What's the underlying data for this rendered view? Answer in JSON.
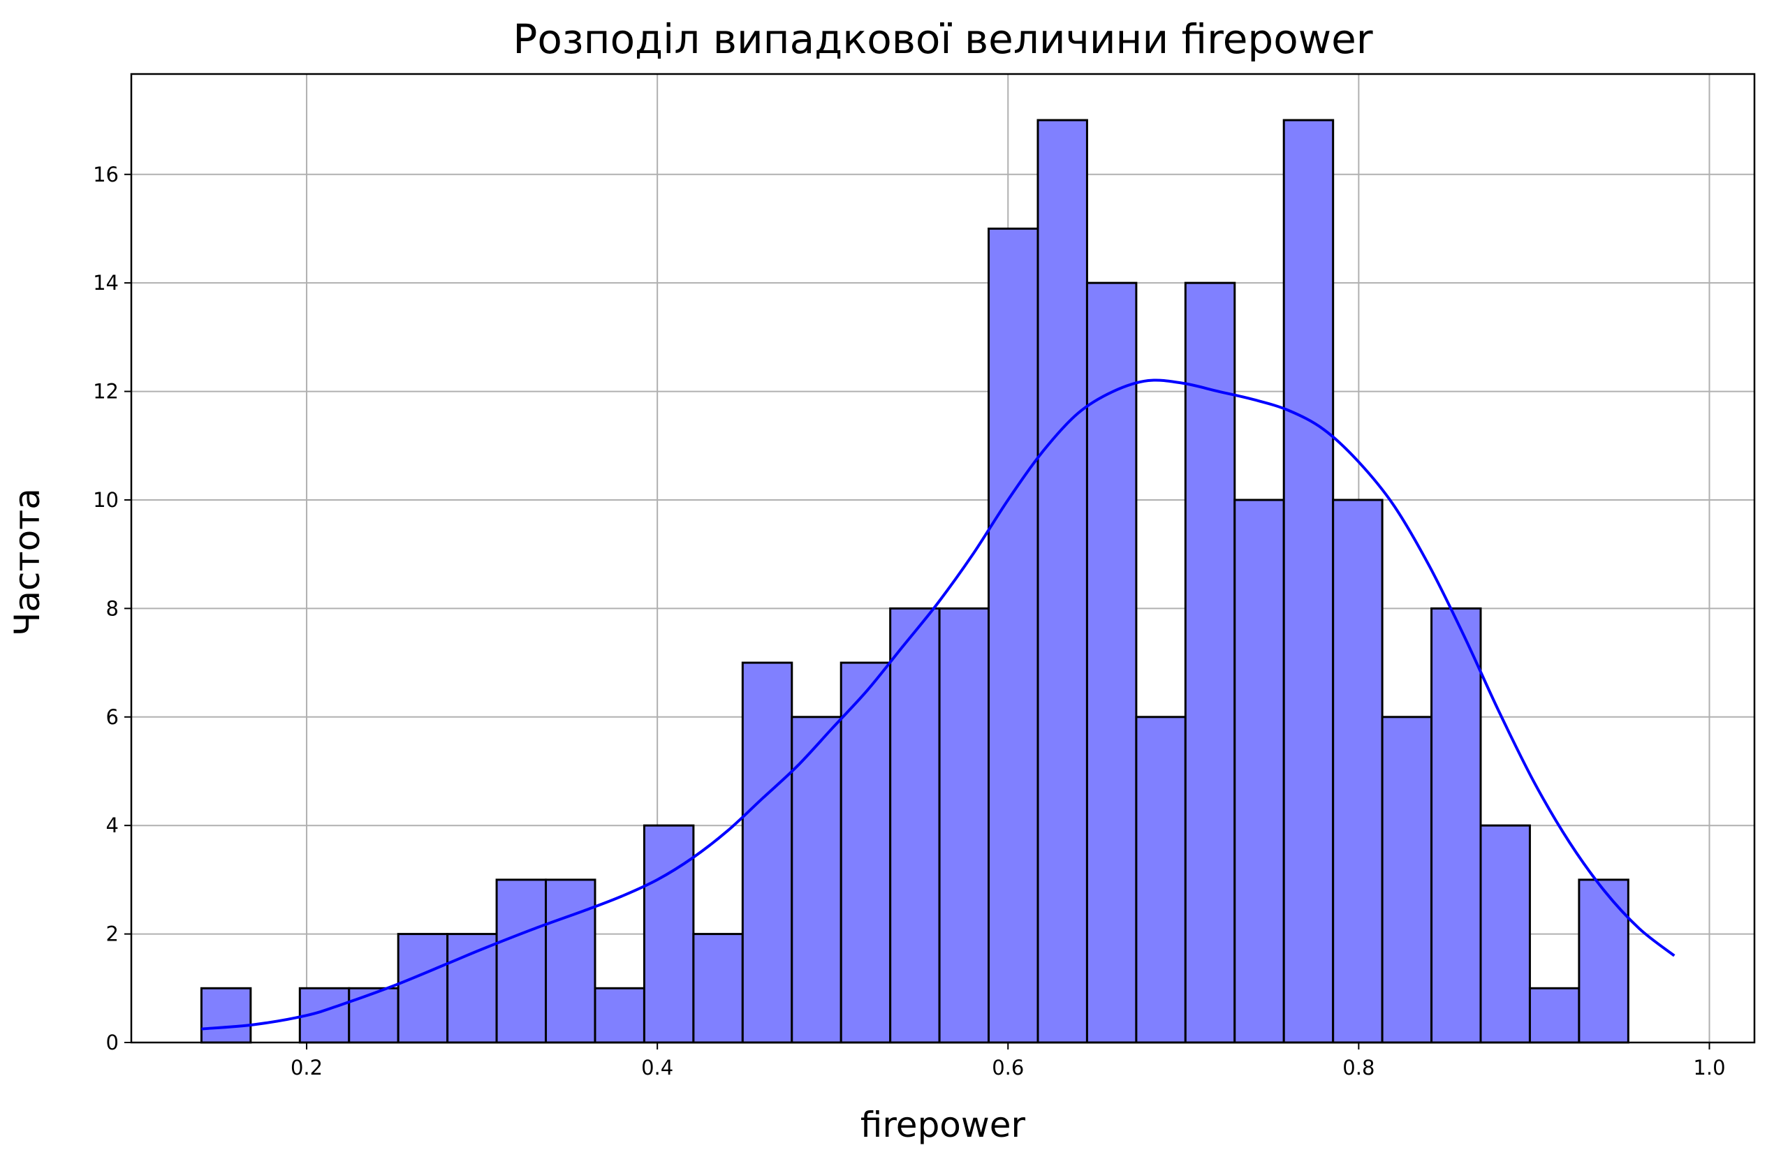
{
  "chart_data": {
    "type": "bar",
    "title": "Розподіл випадкової величини firepower",
    "xlabel": "firepower",
    "ylabel": "Частота",
    "xlim": [
      0.1,
      1.0257
    ],
    "ylim": [
      0,
      17.85
    ],
    "grid": true,
    "x_ticks": [
      0.2,
      0.4,
      0.6,
      0.8,
      1.0
    ],
    "x_tick_labels": [
      "0.2",
      "0.4",
      "0.6",
      "0.8",
      "1.0"
    ],
    "y_ticks": [
      0,
      2,
      4,
      6,
      8,
      10,
      12,
      14,
      16
    ],
    "y_tick_labels": [
      "0",
      "2",
      "4",
      "6",
      "8",
      "10",
      "12",
      "14",
      "16"
    ],
    "bins": {
      "start": 0.14,
      "width": 0.02806,
      "counts": [
        1,
        0,
        1,
        1,
        2,
        2,
        3,
        3,
        1,
        4,
        2,
        7,
        6,
        7,
        8,
        8,
        15,
        17,
        14,
        6,
        14,
        10,
        17,
        10,
        6,
        8,
        4,
        1,
        3
      ]
    },
    "kde": {
      "x": [
        0.14,
        0.17,
        0.2,
        0.22,
        0.25,
        0.28,
        0.3,
        0.33,
        0.36,
        0.38,
        0.4,
        0.42,
        0.44,
        0.46,
        0.48,
        0.5,
        0.52,
        0.54,
        0.56,
        0.58,
        0.6,
        0.62,
        0.64,
        0.66,
        0.68,
        0.7,
        0.72,
        0.74,
        0.76,
        0.78,
        0.8,
        0.82,
        0.84,
        0.86,
        0.88,
        0.9,
        0.92,
        0.94,
        0.96,
        0.98
      ],
      "y": [
        0.25,
        0.33,
        0.5,
        0.7,
        1.05,
        1.45,
        1.72,
        2.1,
        2.45,
        2.7,
        3.0,
        3.4,
        3.9,
        4.5,
        5.1,
        5.8,
        6.5,
        7.3,
        8.1,
        9.0,
        10.0,
        10.9,
        11.6,
        12.0,
        12.2,
        12.15,
        12.0,
        11.85,
        11.65,
        11.3,
        10.7,
        9.9,
        8.8,
        7.5,
        6.1,
        4.8,
        3.7,
        2.8,
        2.1,
        1.6
      ]
    },
    "colors": {
      "bar_fill": "#8080ff",
      "bar_edge": "#000000",
      "kde_line": "#0000ff",
      "grid": "#b0b0b0"
    }
  }
}
